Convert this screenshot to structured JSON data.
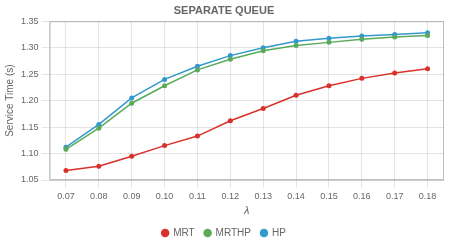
{
  "chart_data": {
    "type": "line",
    "title": "SEPARATE QUEUE",
    "xlabel": "λ",
    "ylabel": "Service Time (s)",
    "x": [
      0.07,
      0.08,
      0.09,
      0.1,
      0.11,
      0.12,
      0.13,
      0.14,
      0.15,
      0.16,
      0.17,
      0.18
    ],
    "series": [
      {
        "name": "MRT",
        "color": "#d9312b",
        "marker": "circle",
        "values": [
          1.068,
          1.076,
          1.095,
          1.115,
          1.133,
          1.162,
          1.185,
          1.21,
          1.228,
          1.242,
          1.252,
          1.26
        ]
      },
      {
        "name": "MRTHP",
        "color": "#5aaa5a",
        "marker": "circle",
        "values": [
          1.108,
          1.148,
          1.195,
          1.228,
          1.258,
          1.278,
          1.294,
          1.304,
          1.31,
          1.316,
          1.32,
          1.323
        ]
      },
      {
        "name": "HP",
        "color": "#3399cc",
        "marker": "circle",
        "values": [
          1.112,
          1.155,
          1.205,
          1.24,
          1.265,
          1.285,
          1.3,
          1.312,
          1.318,
          1.322,
          1.325,
          1.328
        ]
      }
    ],
    "xlim": [
      0.065,
      0.185
    ],
    "xticks": [
      0.07,
      0.08,
      0.09,
      {
        "value": 0.1,
        "label": "0.10"
      },
      0.11,
      0.12,
      0.13,
      0.14,
      0.15,
      0.16,
      0.17,
      0.18
    ],
    "ylim": [
      1.05,
      1.35
    ],
    "yticks": [
      1.05,
      {
        "value": 1.1,
        "label": "1.10"
      },
      1.15,
      {
        "value": 1.2,
        "label": "1.20"
      },
      1.25,
      {
        "value": 1.3,
        "label": "1.30"
      },
      1.35
    ],
    "grid": true,
    "legend": "bottom"
  }
}
